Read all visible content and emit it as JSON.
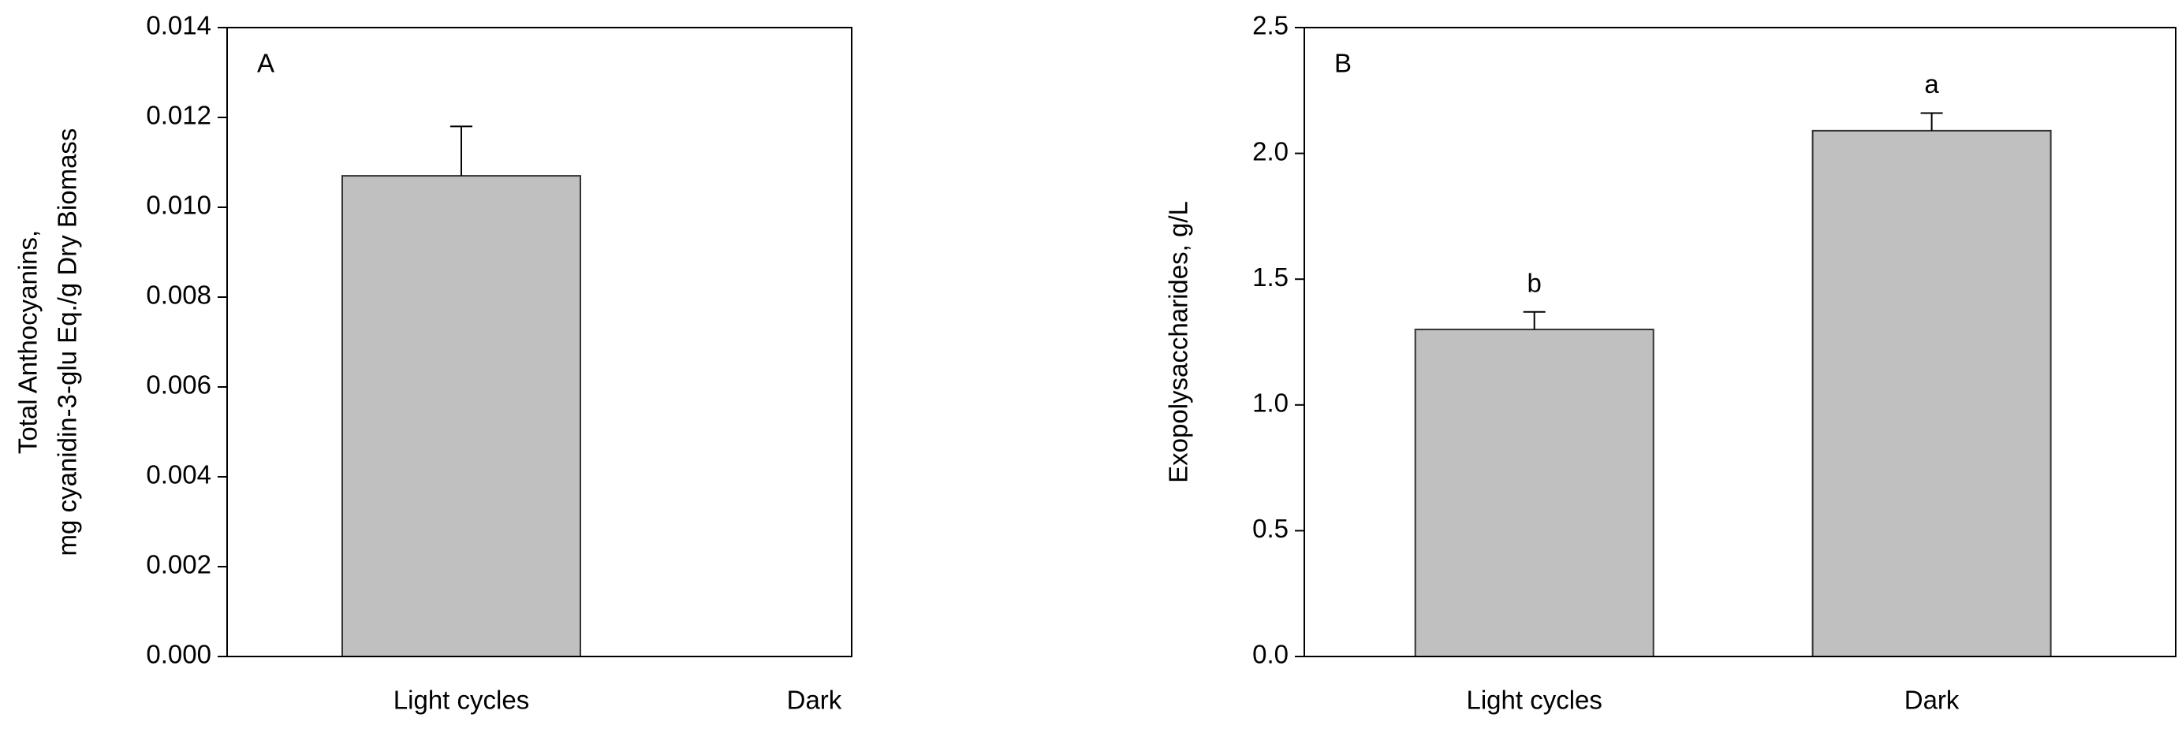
{
  "chart_data": [
    {
      "type": "bar",
      "panel": "A",
      "y_label": [
        "Total Anthocyanins,",
        "mg cyanidin-3-glu Eq./g Dry Biomass"
      ],
      "categories": [
        "Light cycles",
        "Dark"
      ],
      "series": [
        {
          "color": "#c0c0c0",
          "values": [
            0.0107,
            0
          ],
          "errors": [
            0.0011,
            0
          ]
        }
      ],
      "ylim": [
        0,
        0.014
      ],
      "yticks": [
        {
          "value": 0,
          "label": "0.000"
        },
        {
          "value": 0.002,
          "label": "0.002"
        },
        {
          "value": 0.004,
          "label": "0.004"
        },
        {
          "value": 0.006,
          "label": "0.006"
        },
        {
          "value": 0.008,
          "label": "0.008"
        },
        {
          "value": 0.01,
          "label": "0.010"
        },
        {
          "value": 0.012,
          "label": "0.012"
        },
        {
          "value": 0.014,
          "label": "0.014"
        }
      ],
      "grid": false
    },
    {
      "type": "bar",
      "panel": "B",
      "y_label": [
        "Exopolysaccharides, g/L"
      ],
      "categories": [
        "Light cycles",
        "Dark"
      ],
      "series": [
        {
          "color": "#c0c0c0",
          "values": [
            1.3,
            2.09
          ],
          "errors": [
            0.07,
            0.07
          ],
          "labels": [
            "b",
            "a"
          ]
        }
      ],
      "ylim": [
        0,
        2.5
      ],
      "yticks": [
        {
          "value": 0,
          "label": "0.0"
        },
        0.5,
        {
          "value": 1,
          "label": "1.0"
        },
        1.5,
        {
          "value": 2,
          "label": "2.0"
        },
        2.5
      ],
      "grid": false
    }
  ]
}
